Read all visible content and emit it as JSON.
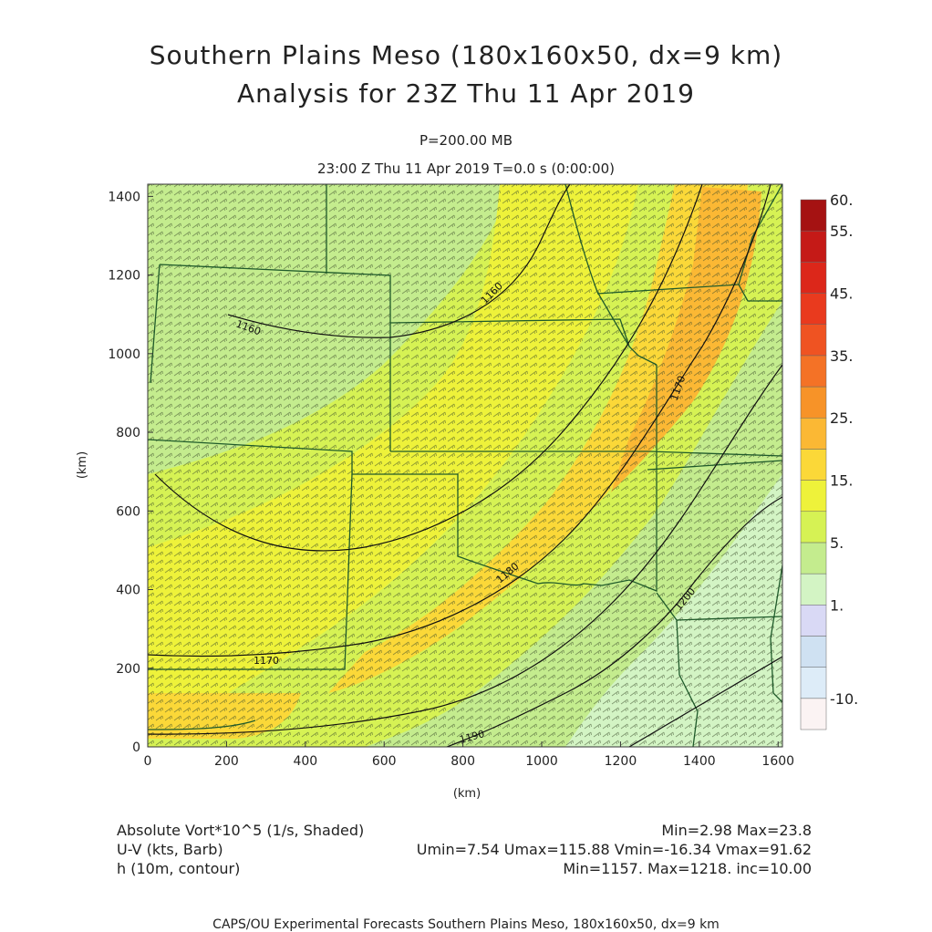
{
  "title": {
    "line1": "Southern Plains Meso (180x160x50, dx=9 km)",
    "line2": "Analysis for 23Z Thu 11 Apr 2019",
    "level": "P=200.00 MB",
    "time": "23:00 Z Thu 11 Apr 2019    T=0.0 s (0:00:00)"
  },
  "map": {
    "axis_unit": "(km)",
    "x_ticks": [
      "0",
      "200",
      "400",
      "600",
      "800",
      "1000",
      "1200",
      "1400",
      "1600"
    ],
    "y_ticks": [
      "0",
      "200",
      "400",
      "600",
      "800",
      "1000",
      "1200",
      "1400"
    ],
    "x_range_km": [
      0,
      1611
    ],
    "y_range_km": [
      0,
      1431
    ],
    "contour_labels": [
      "1160",
      "1160",
      "1170",
      "1170",
      "1180",
      "1190",
      "1200",
      "1200"
    ]
  },
  "colorbar": {
    "labels": [
      "60.",
      "55.",
      "45.",
      "35.",
      "25.",
      "15.",
      "5.",
      "1.",
      "-10."
    ],
    "colors": [
      "#fbf3f3",
      "#ddecf8",
      "#cfe1f2",
      "#d9d9f5",
      "#d3f4c4",
      "#c4ec8e",
      "#d6f254",
      "#eef23a",
      "#fbd838",
      "#fbb834",
      "#f79328",
      "#f47226",
      "#ef5322",
      "#e93a1e",
      "#dc271a",
      "#c51a17",
      "#a51212"
    ]
  },
  "info": {
    "field1": "Absolute Vort*10^5 (1/s, Shaded)",
    "field1_stats": "Min=2.98 Max=23.8",
    "field2": "U-V (kts, Barb)",
    "field2_stats": "Umin=7.54 Umax=115.88 Vmin=-16.34 Vmax=91.62",
    "field3": "h (10m, contour)",
    "field3_stats": "Min=1157. Max=1218. inc=10.00"
  },
  "credit": "CAPS/OU Experimental Forecasts  Southern Plains Meso, 180x160x50, dx=9 km"
}
